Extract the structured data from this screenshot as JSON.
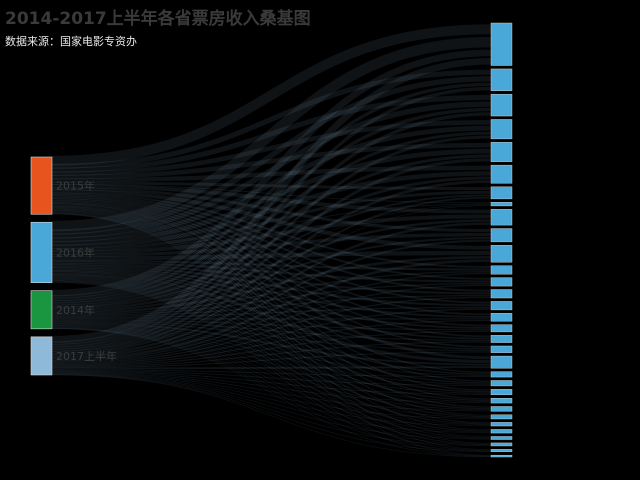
{
  "title": "2014-2017上半年各省票房收入桑基图",
  "subtitle": "数据来源：国家电影专资办",
  "colors": {
    "background": "#000000",
    "link": "#8fb9d8",
    "target_node": "#4aa8d8"
  },
  "chart_data": {
    "type": "sankey",
    "title": "2014-2017上半年各省票房收入桑基图",
    "subtitle": "数据来源：国家电影专资办",
    "sources": [
      {
        "name": "2015年",
        "value": 18,
        "color": "#e8541e"
      },
      {
        "name": "2016年",
        "value": 19,
        "color": "#4aa8d8"
      },
      {
        "name": "2014年",
        "value": 12,
        "color": "#1a9641"
      },
      {
        "name": "2017上半年",
        "value": 12,
        "color": "#8fb9d8"
      }
    ],
    "targets": [
      {
        "name": "",
        "value": 7.0
      },
      {
        "name": "",
        "value": 3.6
      },
      {
        "name": "",
        "value": 3.6
      },
      {
        "name": "",
        "value": 3.2
      },
      {
        "name": "",
        "value": 3.2
      },
      {
        "name": "",
        "value": 3.0
      },
      {
        "name": "",
        "value": 2.0
      },
      {
        "name": "",
        "value": 0.6
      },
      {
        "name": "",
        "value": 2.6
      },
      {
        "name": "",
        "value": 2.2
      },
      {
        "name": "",
        "value": 2.8
      },
      {
        "name": "",
        "value": 1.4
      },
      {
        "name": "",
        "value": 1.4
      },
      {
        "name": "",
        "value": 1.4
      },
      {
        "name": "",
        "value": 1.4
      },
      {
        "name": "",
        "value": 1.3
      },
      {
        "name": "",
        "value": 1.2
      },
      {
        "name": "",
        "value": 1.2
      },
      {
        "name": "",
        "value": 1.1
      },
      {
        "name": "",
        "value": 2.0
      },
      {
        "name": "",
        "value": 0.9
      },
      {
        "name": "",
        "value": 0.9
      },
      {
        "name": "",
        "value": 0.9
      },
      {
        "name": "",
        "value": 0.8
      },
      {
        "name": "",
        "value": 0.8
      },
      {
        "name": "",
        "value": 0.7
      },
      {
        "name": "",
        "value": 0.6
      },
      {
        "name": "",
        "value": 0.6
      },
      {
        "name": "",
        "value": 0.5
      },
      {
        "name": "",
        "value": 0.5
      },
      {
        "name": "",
        "value": 0.4
      },
      {
        "name": "",
        "value": 0.3
      }
    ]
  }
}
